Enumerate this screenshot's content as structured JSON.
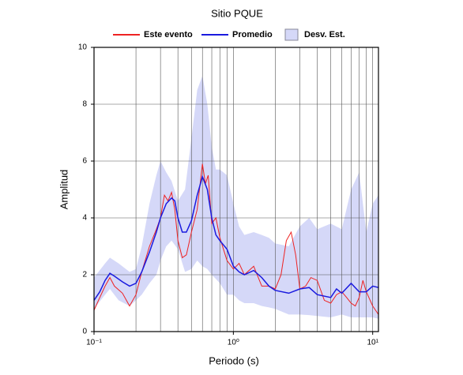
{
  "chart_data": {
    "type": "line",
    "title": "Sitio PQUE",
    "x_label": "Periodo (s)",
    "y_label": "Amplitud",
    "log_x": true,
    "grid": true,
    "xlim": [
      0.1,
      11
    ],
    "ylim": [
      0,
      10
    ],
    "xticks": [
      {
        "value": 0.1,
        "label": "10⁻¹"
      },
      {
        "value": 1,
        "label": "10⁰"
      },
      {
        "value": 10,
        "label": "10¹"
      }
    ],
    "yticks": [
      0,
      2,
      4,
      6,
      8,
      10
    ],
    "band": {
      "name": "Desv. Est.",
      "color": "#d5d8f8",
      "x": [
        0.1,
        0.12,
        0.13,
        0.15,
        0.18,
        0.2,
        0.22,
        0.25,
        0.28,
        0.3,
        0.33,
        0.36,
        0.4,
        0.45,
        0.5,
        0.55,
        0.6,
        0.65,
        0.7,
        0.75,
        0.8,
        0.9,
        1.0,
        1.1,
        1.2,
        1.4,
        1.6,
        1.8,
        2.0,
        2.5,
        3,
        3.5,
        4,
        5,
        6,
        7,
        8,
        9,
        10,
        11
      ],
      "upper": [
        1.9,
        2.4,
        2.6,
        2.4,
        2.1,
        2.2,
        3.0,
        4.5,
        5.5,
        6.0,
        5.6,
        5.3,
        4.6,
        5.0,
        6.8,
        8.5,
        9.0,
        8.0,
        6.5,
        5.7,
        5.7,
        5.5,
        4.5,
        3.7,
        3.4,
        3.5,
        3.4,
        3.3,
        3.1,
        3.0,
        3.7,
        4.0,
        3.6,
        3.8,
        3.6,
        5.0,
        5.6,
        3.5,
        4.5,
        4.8
      ],
      "lower": [
        0.8,
        1.3,
        1.5,
        1.1,
        0.9,
        1.1,
        1.3,
        1.7,
        2.0,
        2.5,
        3.0,
        3.2,
        2.9,
        2.1,
        2.2,
        2.5,
        2.3,
        2.2,
        2.0,
        1.85,
        1.7,
        1.3,
        1.3,
        1.1,
        1.0,
        1.0,
        0.9,
        0.85,
        0.8,
        0.6,
        0.6,
        0.58,
        0.55,
        0.5,
        0.6,
        0.5,
        0.5,
        0.5,
        0.5,
        0.45
      ]
    },
    "series": [
      {
        "name": "Este evento",
        "color": "#ee2222",
        "x": [
          0.1,
          0.11,
          0.12,
          0.13,
          0.14,
          0.16,
          0.18,
          0.2,
          0.22,
          0.25,
          0.28,
          0.3,
          0.32,
          0.34,
          0.36,
          0.38,
          0.4,
          0.43,
          0.46,
          0.5,
          0.55,
          0.6,
          0.63,
          0.66,
          0.7,
          0.75,
          0.8,
          0.9,
          1.0,
          1.1,
          1.2,
          1.4,
          1.6,
          1.8,
          2.0,
          2.2,
          2.4,
          2.6,
          2.8,
          3.0,
          3.3,
          3.6,
          4,
          4.5,
          5,
          5.5,
          6,
          6.5,
          7,
          7.5,
          8,
          8.5,
          9,
          10,
          11
        ],
        "values": [
          0.75,
          1.2,
          1.6,
          1.9,
          1.6,
          1.35,
          0.9,
          1.3,
          2.1,
          3.0,
          3.6,
          4.0,
          4.8,
          4.6,
          4.9,
          4.3,
          3.2,
          2.6,
          2.7,
          3.5,
          4.3,
          5.9,
          5.2,
          5.5,
          3.8,
          4.0,
          3.3,
          2.5,
          2.2,
          2.4,
          2.0,
          2.3,
          1.6,
          1.6,
          1.5,
          2.0,
          3.2,
          3.5,
          2.7,
          1.5,
          1.6,
          1.9,
          1.8,
          1.1,
          1.0,
          1.3,
          1.4,
          1.2,
          1.0,
          0.9,
          1.2,
          1.8,
          1.4,
          0.9,
          0.6
        ]
      },
      {
        "name": "Promedio",
        "color": "#1a1adf",
        "x": [
          0.1,
          0.11,
          0.12,
          0.13,
          0.14,
          0.16,
          0.18,
          0.2,
          0.22,
          0.25,
          0.28,
          0.3,
          0.33,
          0.36,
          0.38,
          0.4,
          0.43,
          0.46,
          0.5,
          0.55,
          0.6,
          0.65,
          0.7,
          0.75,
          0.8,
          0.9,
          1.0,
          1.1,
          1.2,
          1.4,
          1.6,
          1.8,
          2.0,
          2.5,
          3,
          3.5,
          4,
          5,
          5.5,
          6,
          7,
          8,
          9,
          10,
          11
        ],
        "values": [
          1.1,
          1.4,
          1.8,
          2.05,
          1.95,
          1.75,
          1.6,
          1.7,
          2.1,
          2.8,
          3.5,
          4.0,
          4.5,
          4.7,
          4.6,
          4.0,
          3.5,
          3.5,
          3.9,
          4.8,
          5.45,
          5.0,
          4.0,
          3.4,
          3.2,
          2.9,
          2.3,
          2.1,
          2.0,
          2.15,
          1.9,
          1.6,
          1.45,
          1.35,
          1.5,
          1.55,
          1.3,
          1.2,
          1.5,
          1.35,
          1.7,
          1.4,
          1.4,
          1.6,
          1.55
        ]
      }
    ]
  }
}
